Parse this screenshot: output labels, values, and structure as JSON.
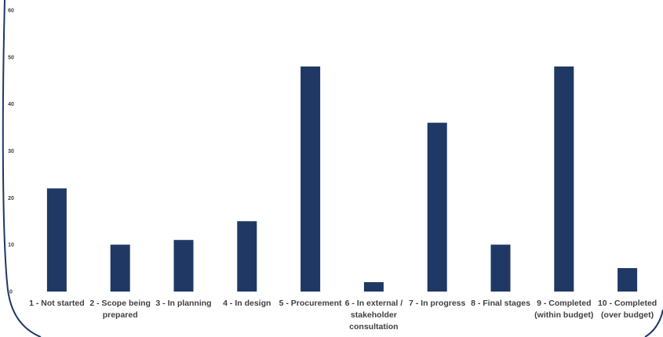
{
  "chart_data": {
    "type": "bar",
    "categories": [
      "1 - Not started",
      "2 - Scope being prepared",
      "3 - In planning",
      "4 - In design",
      "5 - Procurement",
      "6 - In external / stakeholder consultation",
      "7 - In progress",
      "8 - Final stages",
      "9 - Completed (within budget)",
      "10 - Completed (over budget)"
    ],
    "values": [
      22,
      10,
      11,
      15,
      48,
      2,
      36,
      10,
      48,
      5
    ],
    "title": "",
    "xlabel": "",
    "ylabel": "",
    "ylim": [
      0,
      60
    ],
    "yticks": [
      0,
      10,
      20,
      30,
      40,
      50,
      60
    ],
    "grid": false,
    "legend": "none",
    "bar_color": "#1f3864",
    "frame_color": "#1f3864",
    "label_color": "#404040"
  }
}
